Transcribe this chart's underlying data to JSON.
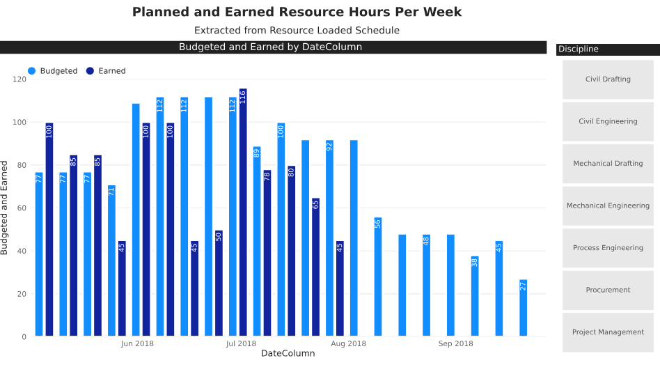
{
  "chart_data": [
    {
      "type": "bar",
      "title": "Planned and Earned Resource Hours Per Week",
      "subtitle": "Extracted from Resource Loaded Schedule",
      "annotations": [
        "Budgeted and Earned by DateColumn"
      ],
      "xlabel": "DateColumn",
      "ylabel": "Budgeted and Earned",
      "x": [
        "2018-05-05",
        "2018-05-12",
        "2018-05-19",
        "2018-05-26",
        "2018-06-02",
        "2018-06-09",
        "2018-06-16",
        "2018-06-23",
        "2018-06-30",
        "2018-07-07",
        "2018-07-14",
        "2018-07-21",
        "2018-07-28",
        "2018-08-04",
        "2018-08-11",
        "2018-08-18",
        "2018-08-25",
        "2018-09-01",
        "2018-09-08",
        "2018-09-15",
        "2018-09-22"
      ],
      "series": [
        {
          "name": "Budgeted",
          "color": "#118dff",
          "values": [
            77,
            77,
            77,
            71,
            109,
            112,
            112,
            112,
            112,
            89,
            100,
            92,
            92,
            92,
            56,
            48,
            48,
            48,
            38,
            45,
            27
          ],
          "value_labels": [
            "77",
            "77",
            "77",
            "71",
            null,
            "112",
            "112",
            null,
            "112",
            "89",
            "100",
            null,
            "92",
            null,
            "56",
            null,
            "48",
            null,
            "38",
            "45",
            "27"
          ]
        },
        {
          "name": "Earned",
          "color": "#12239e",
          "values": [
            100,
            85,
            85,
            45,
            100,
            100,
            45,
            50,
            116,
            78,
            80,
            65,
            45,
            null,
            null,
            null,
            null,
            null,
            null,
            null,
            null
          ],
          "value_labels": [
            "100",
            "85",
            "85",
            "45",
            "100",
            "100",
            "45",
            "50",
            "116",
            "78",
            "80",
            "65",
            "45",
            null,
            null,
            null,
            null,
            null,
            null,
            null,
            null
          ]
        }
      ],
      "xlim": [
        "2018-05-01",
        "2018-09-27"
      ],
      "xticks": [
        {
          "value": "2018-06-01",
          "label": "Jun 2018"
        },
        {
          "value": "2018-07-01",
          "label": "Jul 2018"
        },
        {
          "value": "2018-08-01",
          "label": "Aug 2018"
        },
        {
          "value": "2018-09-01",
          "label": "Sep 2018"
        }
      ],
      "ylim": [
        0,
        120
      ],
      "yticks": [
        0,
        20,
        40,
        60,
        80,
        100,
        120
      ],
      "grid": "y",
      "legend": "top left"
    },
    {
      "type": "other",
      "title": "Discipline",
      "annotations": [
        "Civil Drafting",
        "Civil Engineering",
        "Mechanical Drafting",
        "Mechanical Engineering",
        "Process Engineering",
        "Procurement",
        "Project Management"
      ]
    }
  ]
}
